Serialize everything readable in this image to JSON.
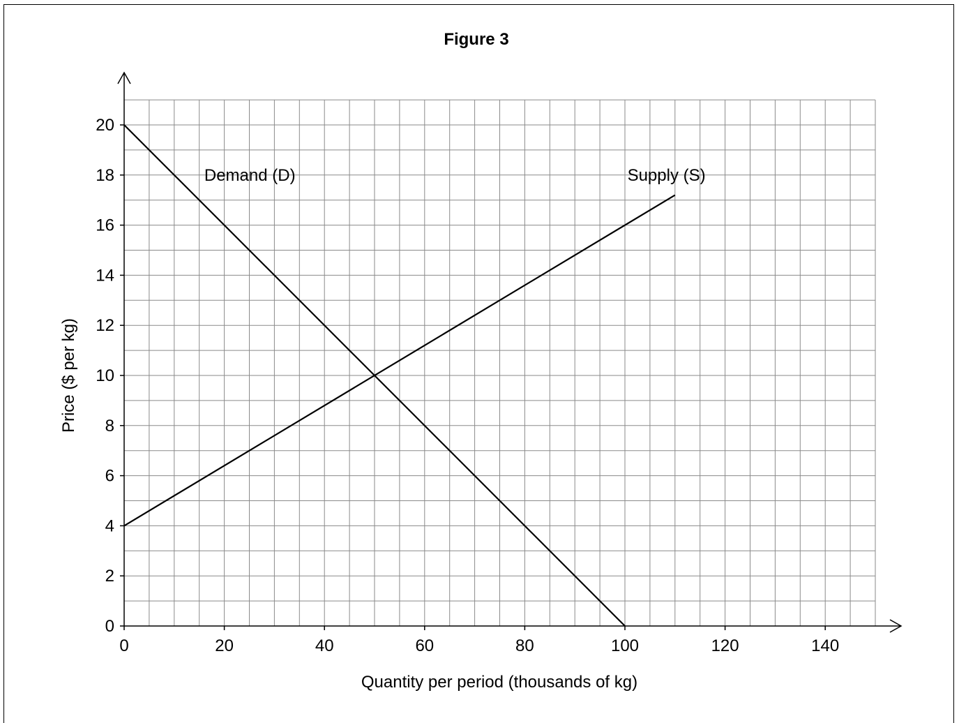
{
  "chart_data": {
    "type": "line",
    "title": "Figure 3",
    "xlabel": "Quantity per period (thousands of kg)",
    "ylabel": "Price ($ per kg)",
    "xlim": [
      0,
      150
    ],
    "ylim": [
      0,
      21
    ],
    "x_ticks": [
      0,
      20,
      40,
      60,
      80,
      100,
      120,
      140
    ],
    "y_ticks": [
      0,
      2,
      4,
      6,
      8,
      10,
      12,
      14,
      16,
      18,
      20
    ],
    "grid": true,
    "grid_minor_x": 5,
    "grid_minor_y": 1,
    "series": [
      {
        "name": "Demand (D)",
        "x": [
          0,
          100
        ],
        "y": [
          20,
          0
        ],
        "color": "#000000"
      },
      {
        "name": "Supply (S)",
        "x": [
          0,
          110
        ],
        "y": [
          4,
          17.2
        ],
        "color": "#000000"
      }
    ],
    "annotations": [
      {
        "text": "Demand (D)",
        "x": 16,
        "y": 18
      },
      {
        "text": "Supply (S)",
        "x": 100.5,
        "y": 18
      }
    ]
  }
}
